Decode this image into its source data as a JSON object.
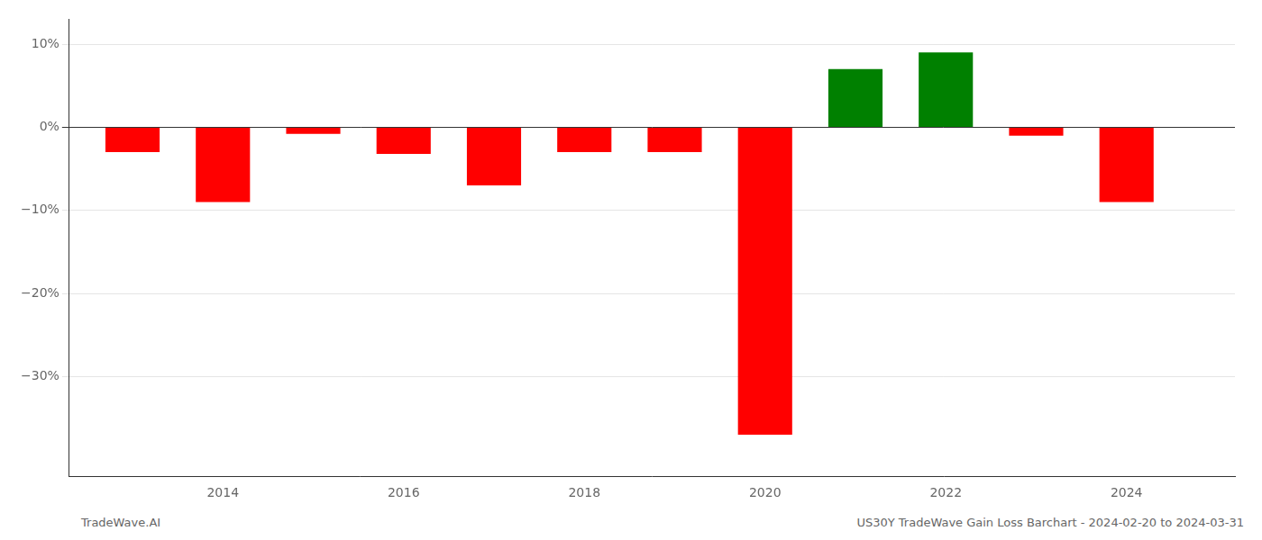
{
  "chart_data": {
    "type": "bar",
    "x": [
      2013,
      2014,
      2015,
      2016,
      2017,
      2018,
      2019,
      2020,
      2021,
      2022,
      2023,
      2024
    ],
    "values": [
      -3.0,
      -9.0,
      -0.8,
      -3.2,
      -7.0,
      -3.0,
      -3.0,
      -37.0,
      7.0,
      9.0,
      -1.0,
      -9.0
    ],
    "colors": [
      "#ff0000",
      "#ff0000",
      "#ff0000",
      "#ff0000",
      "#ff0000",
      "#ff0000",
      "#ff0000",
      "#ff0000",
      "#008000",
      "#008000",
      "#ff0000",
      "#ff0000"
    ],
    "xlim": [
      2012.3,
      2025.2
    ],
    "xticks": [
      2014,
      2016,
      2018,
      2020,
      2022,
      2024
    ],
    "ylim": [
      -42,
      13
    ],
    "yticks": [
      {
        "value": 10,
        "label": "10%"
      },
      {
        "value": 0,
        "label": "0%"
      },
      {
        "value": -10,
        "label": "−10%"
      },
      {
        "value": -20,
        "label": "−20%"
      },
      {
        "value": -30,
        "label": "−30%"
      }
    ],
    "grid": true,
    "annotations": [
      "TradeWave.AI",
      "US30Y TradeWave Gain Loss Barchart - 2024-02-20 to 2024-03-31"
    ]
  }
}
